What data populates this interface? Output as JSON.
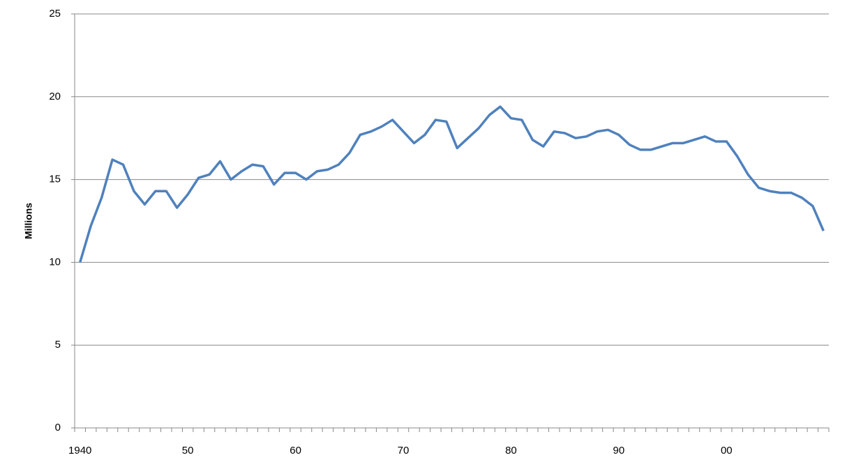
{
  "chart_data": {
    "type": "line",
    "y_label": "Millions",
    "categories": [
      "1940",
      null,
      null,
      null,
      null,
      null,
      null,
      null,
      null,
      null,
      "50",
      null,
      null,
      null,
      null,
      null,
      null,
      null,
      null,
      null,
      "60",
      null,
      null,
      null,
      null,
      null,
      null,
      null,
      null,
      null,
      "70",
      null,
      null,
      null,
      null,
      null,
      null,
      null,
      null,
      null,
      "80",
      null,
      null,
      null,
      null,
      null,
      null,
      null,
      null,
      null,
      "90",
      null,
      null,
      null,
      null,
      null,
      null,
      null,
      null,
      null,
      "00",
      null,
      null,
      null,
      null,
      null,
      null,
      null,
      null,
      null
    ],
    "series": [
      {
        "color": "#4f81bd",
        "values": [
          10.0,
          12.2,
          13.9,
          16.2,
          15.9,
          14.3,
          13.5,
          14.3,
          14.3,
          13.3,
          14.1,
          15.1,
          15.3,
          16.1,
          15.0,
          15.5,
          15.9,
          15.8,
          14.7,
          15.4,
          15.4,
          15.0,
          15.5,
          15.6,
          15.9,
          16.6,
          17.7,
          17.9,
          18.2,
          18.6,
          17.9,
          17.2,
          17.7,
          18.6,
          18.5,
          16.9,
          17.5,
          18.1,
          18.9,
          19.4,
          18.7,
          18.6,
          17.4,
          17.0,
          17.9,
          17.8,
          17.5,
          17.6,
          17.9,
          18.0,
          17.7,
          17.1,
          16.8,
          16.8,
          17.0,
          17.2,
          17.2,
          17.4,
          17.6,
          17.3,
          17.3,
          16.4,
          15.3,
          14.5,
          14.3,
          14.2,
          14.2,
          13.9,
          13.4,
          11.9
        ]
      }
    ],
    "ylim": [
      0,
      25
    ],
    "yticks": [
      0,
      5,
      10,
      15,
      20,
      25
    ],
    "grid": true
  }
}
